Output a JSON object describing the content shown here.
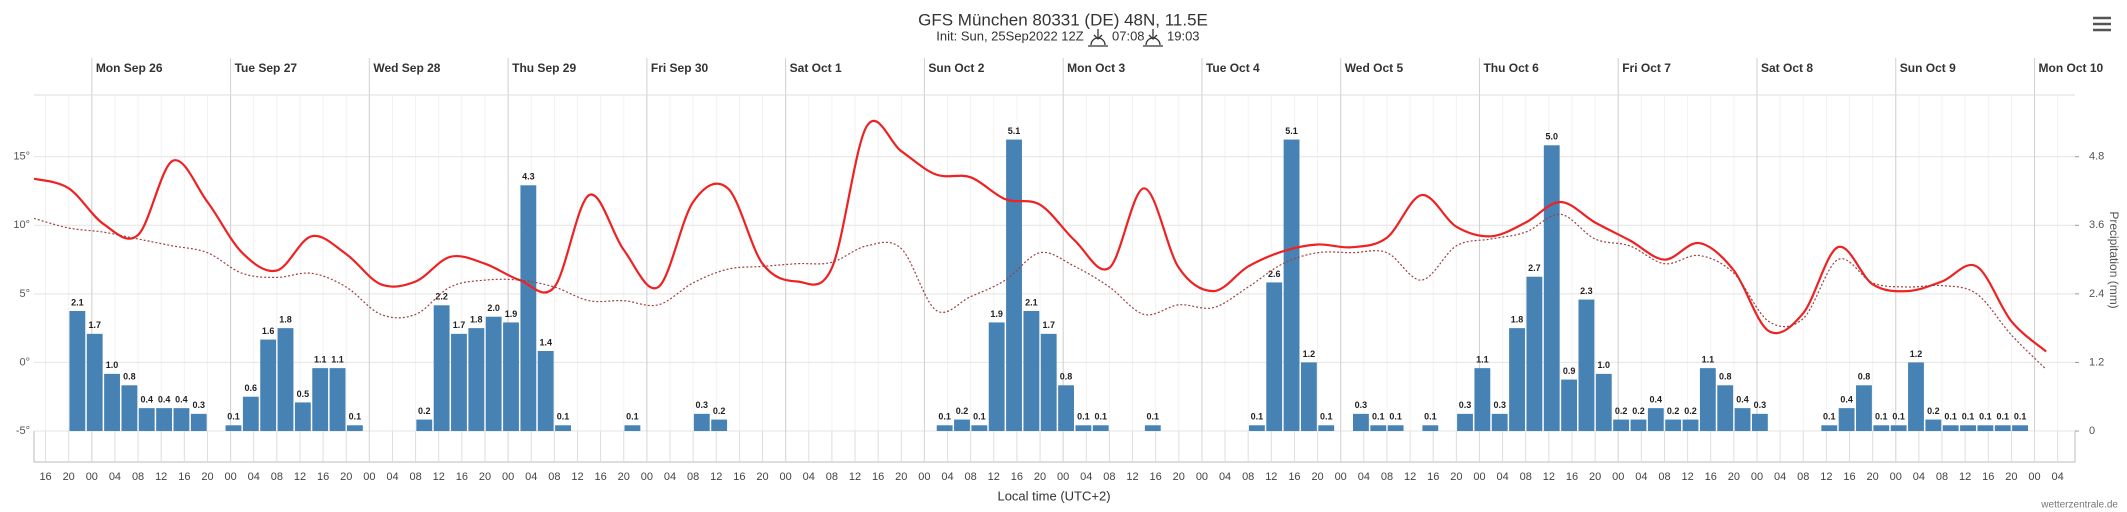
{
  "chart_data": {
    "type": "meteogram",
    "title": "GFS München 80331 (DE) 48N, 11.5E",
    "subtitle": "Init: Sun, 25Sep2022 12Z",
    "sunrise": "07:08",
    "sunset": "19:03",
    "x_label": "Local time (UTC+2)",
    "y2_label": "Precipitation (mm)",
    "credit": "wetterzentrale.de",
    "days": [
      "Mon Sep 26",
      "Tue Sep 27",
      "Wed Sep 28",
      "Thu Sep 29",
      "Fri Sep 30",
      "Sat Oct 1",
      "Sun Oct 2",
      "Mon Oct 3",
      "Tue Oct 4",
      "Wed Oct 5",
      "Thu Oct 6",
      "Fri Oct 7",
      "Sat Oct 8",
      "Sun Oct 9",
      "Mon Oct 10"
    ],
    "xticks": [
      "16",
      "20",
      "00",
      "04",
      "08",
      "12",
      "16",
      "20",
      "00",
      "04",
      "08",
      "12",
      "16",
      "20",
      "00",
      "04",
      "08",
      "12",
      "16",
      "20",
      "00",
      "04",
      "08",
      "12",
      "16",
      "20",
      "00",
      "04",
      "08",
      "12",
      "16",
      "20",
      "00",
      "04",
      "08",
      "12",
      "16",
      "20",
      "00",
      "04",
      "08",
      "12",
      "16",
      "20",
      "00",
      "04",
      "08",
      "12",
      "16",
      "20",
      "00",
      "04",
      "08",
      "12",
      "16",
      "20",
      "00",
      "04",
      "08",
      "12",
      "16",
      "20",
      "00",
      "04",
      "08",
      "12",
      "16",
      "20",
      "00",
      "04",
      "08",
      "12",
      "16",
      "20",
      "00",
      "04",
      "08",
      "12",
      "16",
      "20",
      "00",
      "04",
      "08",
      "12",
      "16",
      "20",
      "00",
      "04"
    ],
    "ylim": [
      -5,
      19.5
    ],
    "yticks": [
      {
        "value": -5,
        "label": "-5°"
      },
      {
        "value": 0,
        "label": "0°"
      },
      {
        "value": 5,
        "label": "5°"
      },
      {
        "value": 10,
        "label": "10°"
      },
      {
        "value": 15,
        "label": "15°"
      }
    ],
    "y2lim": [
      0,
      5.88
    ],
    "y2ticks": [
      0,
      1.2,
      2.4,
      3.6,
      4.8
    ],
    "grid": true,
    "series": [
      {
        "type": "line",
        "color": "#ee2222",
        "style": "solid",
        "values": [
          13.4,
          12.7,
          10.1,
          9.3,
          14.7,
          11.7,
          8.0,
          6.7,
          9.2,
          7.9,
          5.7,
          5.9,
          7.7,
          7.2,
          6.0,
          5.5,
          12.2,
          8.2,
          5.5,
          11.7,
          12.7,
          7.2,
          5.9,
          6.9,
          17.2,
          15.4,
          13.7,
          13.5,
          11.9,
          11.5,
          8.9,
          6.9,
          12.7,
          6.9,
          5.2,
          7.0,
          8.1,
          8.6,
          8.4,
          9.1,
          12.2,
          9.9,
          9.2,
          10.2,
          11.7,
          10.2,
          8.9,
          7.5,
          8.7,
          6.7,
          2.3,
          3.6,
          8.4,
          5.7,
          5.2,
          5.9,
          7.0,
          3.0,
          0.8
        ]
      },
      {
        "type": "line",
        "color": "#a04040",
        "style": "dotted",
        "values": [
          10.5,
          9.8,
          9.5,
          9.0,
          8.5,
          8.0,
          6.5,
          6.2,
          6.5,
          5.5,
          3.5,
          3.5,
          5.5,
          6.0,
          6.0,
          5.5,
          4.5,
          4.5,
          4.2,
          5.8,
          6.8,
          7.0,
          7.2,
          7.3,
          8.5,
          8.3,
          3.8,
          4.8,
          6.0,
          8.0,
          7.0,
          5.5,
          3.5,
          4.2,
          4.0,
          5.5,
          7.2,
          8.0,
          8.0,
          8.0,
          6.0,
          8.5,
          9.0,
          9.5,
          10.8,
          9.0,
          8.5,
          7.2,
          7.8,
          6.5,
          3.0,
          3.2,
          7.5,
          5.8,
          5.5,
          5.6,
          5.0,
          2.0,
          -0.5
        ]
      },
      {
        "type": "bar",
        "axis": "y2",
        "color": "#4682b4",
        "values": [
          null,
          null,
          2.1,
          1.7,
          1.0,
          0.8,
          0.4,
          0.4,
          0.4,
          0.3,
          null,
          0.1,
          0.6,
          1.6,
          1.8,
          0.5,
          1.1,
          1.1,
          0.1,
          null,
          null,
          null,
          0.2,
          2.2,
          1.7,
          1.8,
          2.0,
          1.9,
          4.3,
          1.4,
          0.1,
          null,
          null,
          null,
          0.1,
          null,
          null,
          null,
          0.3,
          0.2,
          null,
          null,
          null,
          null,
          null,
          null,
          null,
          null,
          null,
          null,
          null,
          null,
          0.1,
          0.2,
          0.1,
          1.9,
          5.1,
          2.1,
          1.7,
          0.8,
          0.1,
          0.1,
          null,
          null,
          0.1,
          null,
          null,
          null,
          null,
          null,
          0.1,
          2.6,
          5.1,
          1.2,
          0.1,
          null,
          0.3,
          0.1,
          0.1,
          null,
          0.1,
          null,
          0.3,
          1.1,
          0.3,
          1.8,
          2.7,
          5.0,
          0.9,
          2.3,
          1.0,
          0.2,
          0.2,
          0.4,
          0.2,
          0.2,
          1.1,
          0.8,
          0.4,
          0.3,
          null,
          null,
          null,
          0.1,
          0.4,
          0.8,
          0.1,
          0.1,
          1.2,
          0.2,
          0.1,
          0.1,
          0.1,
          0.1,
          0.1,
          null,
          null
        ],
        "value_labels": [
          null,
          null,
          "2.1",
          "1.7",
          "1.0",
          "0.8",
          "0.4",
          "0.4",
          "0.4",
          "0.3",
          null,
          "0.1",
          "0.6",
          "1.6",
          "1.8",
          "0.5",
          "1.1",
          "1.1",
          "0.1",
          null,
          null,
          null,
          "0.2",
          "2.2",
          "1.7",
          "1.8",
          "2.0",
          "1.9",
          "4.3",
          "1.4",
          "0.1",
          null,
          null,
          null,
          "0.1",
          null,
          null,
          null,
          "0.3",
          "0.2",
          null,
          null,
          null,
          null,
          null,
          null,
          null,
          null,
          null,
          null,
          null,
          null,
          "0.1",
          "0.2",
          "0.1",
          "1.9",
          "5.1",
          "2.1",
          "1.7",
          "0.8",
          "0.1",
          "0.1",
          null,
          null,
          "0.1",
          null,
          null,
          null,
          null,
          null,
          "0.1",
          "2.6",
          "5.1",
          "1.2",
          "0.1",
          null,
          "0.3",
          "0.1",
          "0.1",
          null,
          "0.1",
          null,
          "0.3",
          "1.1",
          "0.3",
          "1.8",
          "2.7",
          "5.0",
          "0.9",
          "2.3",
          "1.0",
          "0.2",
          "0.2",
          "0.4",
          "0.2",
          "0.2",
          "1.1",
          "0.8",
          "0.4",
          "0.3",
          null,
          null,
          null,
          "0.1",
          "0.4",
          "0.8",
          "0.1",
          "0.1",
          "1.2",
          "0.2",
          "0.1",
          "0.1",
          "0.1",
          "0.1",
          "0.1",
          null,
          null
        ]
      }
    ]
  }
}
